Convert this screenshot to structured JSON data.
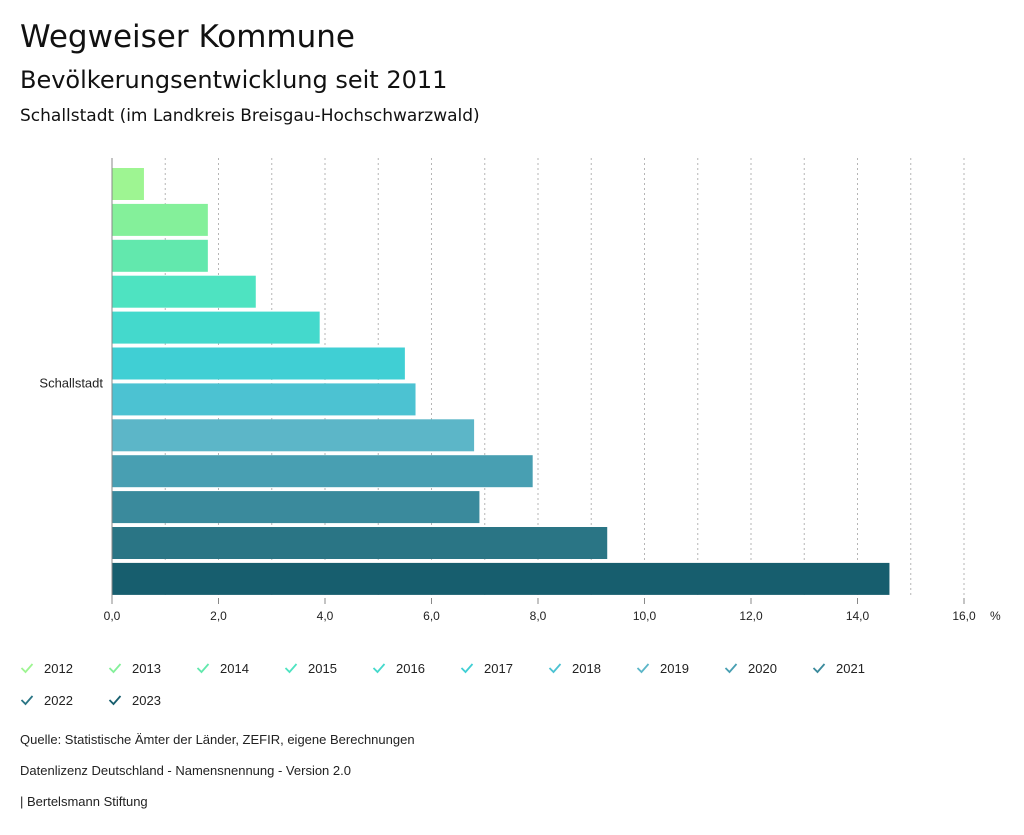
{
  "header": {
    "title": "Wegweiser Kommune",
    "subtitle": "Bevölkerungsentwicklung seit 2011",
    "region": "Schallstadt (im Landkreis Breisgau-Hochschwarzwald)"
  },
  "chart_data": {
    "type": "bar",
    "orientation": "horizontal",
    "categories": [
      "Schallstadt"
    ],
    "series": [
      {
        "name": "2012",
        "values": [
          0.6
        ],
        "color": "#9ef592"
      },
      {
        "name": "2013",
        "values": [
          1.8
        ],
        "color": "#84f09a"
      },
      {
        "name": "2014",
        "values": [
          1.8
        ],
        "color": "#62e8ad"
      },
      {
        "name": "2015",
        "values": [
          2.7
        ],
        "color": "#4ee3c1"
      },
      {
        "name": "2016",
        "values": [
          3.9
        ],
        "color": "#44d9cc"
      },
      {
        "name": "2017",
        "values": [
          5.5
        ],
        "color": "#40cfd4"
      },
      {
        "name": "2018",
        "values": [
          5.7
        ],
        "color": "#4cc2d2"
      },
      {
        "name": "2019",
        "values": [
          6.8
        ],
        "color": "#5cb6c8"
      },
      {
        "name": "2020",
        "values": [
          7.9
        ],
        "color": "#489fb2"
      },
      {
        "name": "2021",
        "values": [
          6.9
        ],
        "color": "#3a8a9c"
      },
      {
        "name": "2022",
        "values": [
          9.3
        ],
        "color": "#2a7585"
      },
      {
        "name": "2023",
        "values": [
          14.6
        ],
        "color": "#175e6e"
      }
    ],
    "xlim": [
      0,
      16
    ],
    "xticks": [
      "0,0",
      "2,0",
      "4,0",
      "6,0",
      "8,0",
      "10,0",
      "12,0",
      "14,0",
      "16,0"
    ],
    "xunit": "%",
    "grid": true
  },
  "footer": {
    "source": "Quelle: Statistische Ämter der Länder, ZEFIR, eigene Berechnungen",
    "license": "Datenlizenz Deutschland - Namensnennung - Version 2.0",
    "publisher": "| Bertelsmann Stiftung"
  }
}
